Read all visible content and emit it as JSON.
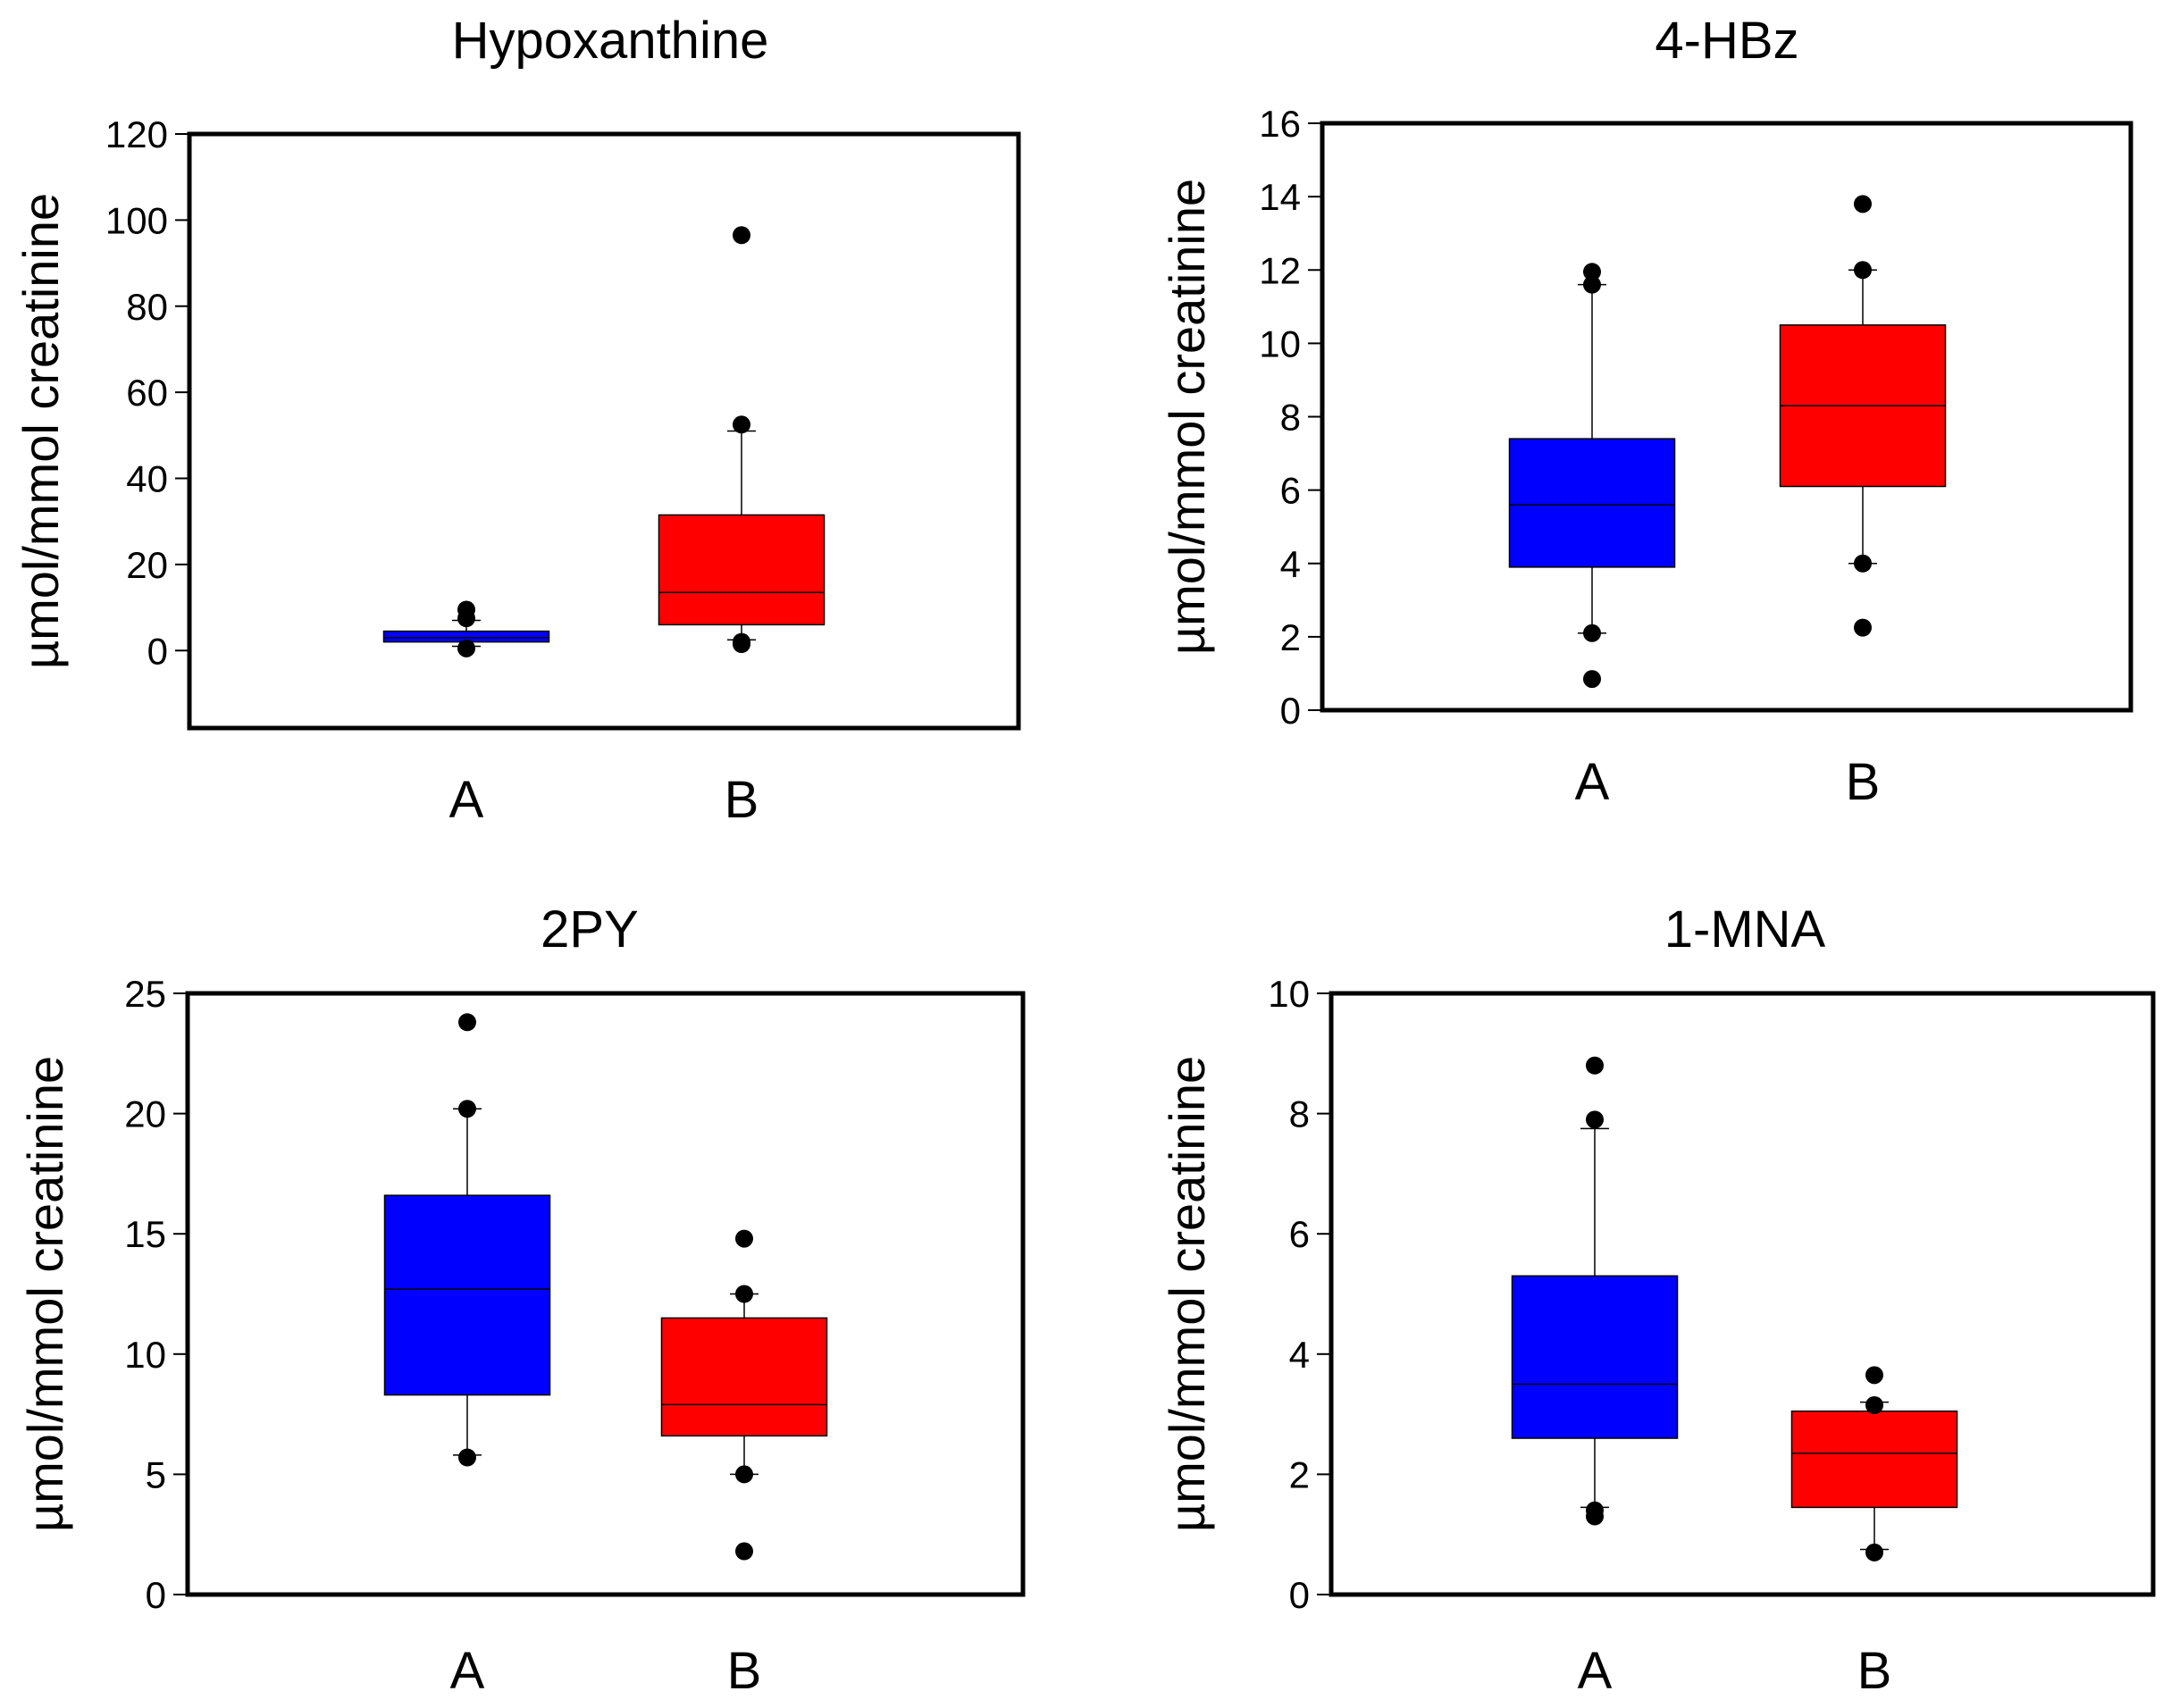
{
  "chart_data": [
    {
      "type": "box",
      "title": "Hypoxanthine",
      "ylabel": "µmol/mmol creatinine",
      "ylim": [
        -18,
        120
      ],
      "yticks": [
        0,
        20,
        40,
        60,
        80,
        100,
        120
      ],
      "categories": [
        "A",
        "B"
      ],
      "colors": [
        "#0000ff",
        "#ff0000"
      ],
      "boxes": [
        {
          "category": "A",
          "q1": 2,
          "median": 3,
          "q3": 4.5,
          "whisker_low": 1,
          "whisker_high": 7,
          "outliers": [
            0.5,
            7.5,
            9.5
          ]
        },
        {
          "category": "B",
          "q1": 6,
          "median": 13.5,
          "q3": 31.5,
          "whisker_low": 2.5,
          "whisker_high": 51,
          "outliers": [
            1.5,
            2,
            52.5,
            96.5
          ]
        }
      ]
    },
    {
      "type": "box",
      "title": "4-HBz",
      "ylabel": "µmol/mmol creatinine",
      "ylim": [
        0,
        16
      ],
      "yticks": [
        0,
        2,
        4,
        6,
        8,
        10,
        12,
        14,
        16
      ],
      "categories": [
        "A",
        "B"
      ],
      "colors": [
        "#0000ff",
        "#ff0000"
      ],
      "boxes": [
        {
          "category": "A",
          "q1": 3.9,
          "median": 5.6,
          "q3": 7.4,
          "whisker_low": 2.1,
          "whisker_high": 11.6,
          "outliers": [
            0.85,
            2.1,
            11.6,
            11.95
          ]
        },
        {
          "category": "B",
          "q1": 6.1,
          "median": 8.3,
          "q3": 10.5,
          "whisker_low": 4,
          "whisker_high": 12,
          "outliers": [
            2.25,
            4,
            12,
            13.8
          ]
        }
      ]
    },
    {
      "type": "box",
      "title": "2PY",
      "ylabel": "µmol/mmol creatinine",
      "ylim": [
        0,
        25
      ],
      "yticks": [
        0,
        5,
        10,
        15,
        20,
        25
      ],
      "categories": [
        "A",
        "B"
      ],
      "colors": [
        "#0000ff",
        "#ff0000"
      ],
      "boxes": [
        {
          "category": "A",
          "q1": 8.3,
          "median": 12.7,
          "q3": 16.6,
          "whisker_low": 5.8,
          "whisker_high": 20.2,
          "outliers": [
            5.7,
            20.2,
            23.8
          ]
        },
        {
          "category": "B",
          "q1": 6.6,
          "median": 7.9,
          "q3": 11.5,
          "whisker_low": 5,
          "whisker_high": 12.5,
          "outliers": [
            1.8,
            5,
            12.5,
            14.8
          ]
        }
      ]
    },
    {
      "type": "box",
      "title": "1-MNA",
      "ylabel": "µmol/mmol creatinine",
      "ylim": [
        0,
        10
      ],
      "yticks": [
        0,
        2,
        4,
        6,
        8,
        10
      ],
      "categories": [
        "A",
        "B"
      ],
      "colors": [
        "#0000ff",
        "#ff0000"
      ],
      "boxes": [
        {
          "category": "A",
          "q1": 2.6,
          "median": 3.5,
          "q3": 5.3,
          "whisker_low": 1.45,
          "whisker_high": 7.75,
          "outliers": [
            1.3,
            1.4,
            7.9,
            8.8
          ]
        },
        {
          "category": "B",
          "q1": 1.45,
          "median": 2.35,
          "q3": 3.05,
          "whisker_low": 0.75,
          "whisker_high": 3.2,
          "outliers": [
            0.7,
            3.15,
            3.65
          ]
        }
      ]
    }
  ]
}
